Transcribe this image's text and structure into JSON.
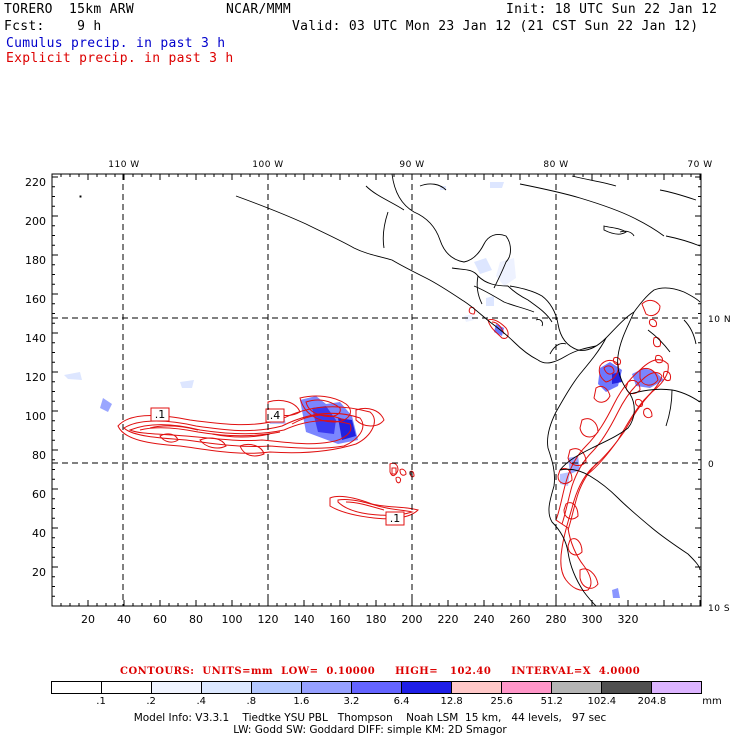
{
  "header": {
    "model": "TORERO  15km ARW",
    "org": "NCAR/MMM",
    "init": "Init: 18 UTC Sun 22 Jan 12",
    "fcst": "Fcst:    9 h",
    "valid": "Valid: 03 UTC Mon 23 Jan 12 (21 CST Sun 22 Jan 12)",
    "cumulus": "Cumulus precip. in past 3 h",
    "explicit": "Explicit precip. in past 3 h"
  },
  "axes": {
    "x_ticks": [
      "20",
      "40",
      "60",
      "80",
      "100",
      "120",
      "140",
      "160",
      "180",
      "200",
      "220",
      "240",
      "260",
      "280",
      "300",
      "320"
    ],
    "y_ticks": [
      "20",
      "40",
      "60",
      "80",
      "100",
      "120",
      "140",
      "160",
      "180",
      "200",
      "220"
    ],
    "lon_labels": [
      "110 W",
      "100 W",
      "90 W",
      "80 W",
      "70 W"
    ],
    "lat_labels": [
      "10 N",
      "0",
      "10 S"
    ]
  },
  "map_labels": {
    "box1": ".1",
    "box2": ".4",
    "box3": ".1"
  },
  "contours": {
    "prefix": "CONTOURS:",
    "units": "UNITS=mm",
    "low": "LOW=  0.10000",
    "high": "HIGH=   102.40",
    "interval": "INTERVAL=X  4.0000"
  },
  "scale": {
    "colors": [
      "#ffffff",
      "#ffffff",
      "#f0f4ff",
      "#dce8ff",
      "#b4c8ff",
      "#96a0ff",
      "#6464ff",
      "#1e1ee6",
      "#ffc8c8",
      "#ff96c8",
      "#b4b4b4",
      "#505050",
      "#dcb4ff"
    ],
    "labels": [
      ".1",
      ".2",
      ".4",
      ".8",
      "1.6",
      "3.2",
      "6.4",
      "12.8",
      "25.6",
      "51.2",
      "102.4",
      "204.8"
    ],
    "unit": "mm"
  },
  "footer": {
    "line1": "Model Info: V3.3.1    Tiedtke YSU PBL   Thompson    Noah LSM  15 km,   44 levels,   97 sec",
    "line2": "LW: Godd SW: Goddard DIFF: simple KM: 2D Smagor"
  },
  "colors": {
    "cumulus": "#4a5cf0",
    "explicit": "#e01010"
  }
}
